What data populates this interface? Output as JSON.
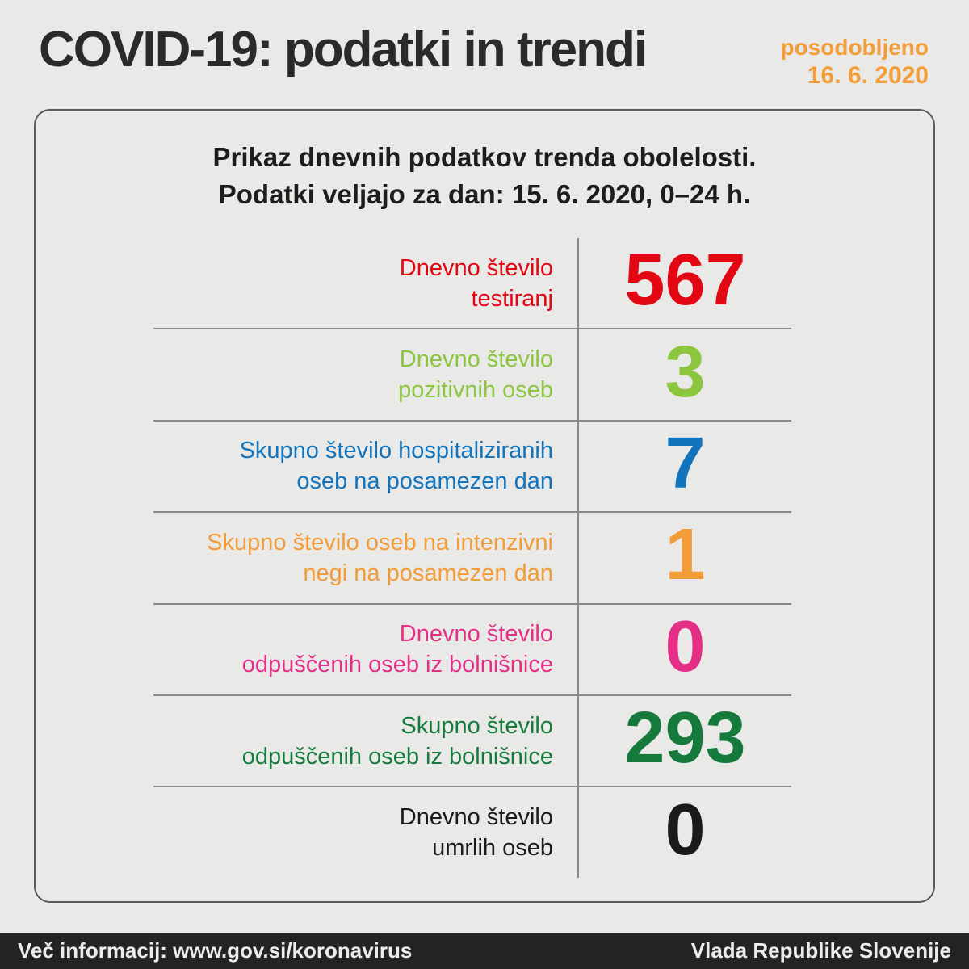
{
  "page": {
    "title": "COVID-19: podatki in trendi",
    "updated_label": "posodobljeno",
    "updated_date": "16. 6. 2020"
  },
  "card": {
    "header_line1": "Prikaz dnevnih podatkov trenda obolelosti.",
    "header_line2": "Podatki veljajo za dan: 15. 6. 2020, 0–24 h.",
    "rows": [
      {
        "label_line1": "Dnevno število",
        "label_line2": "testiranj",
        "value": "567",
        "color": "#e30613"
      },
      {
        "label_line1": "Dnevno število",
        "label_line2": "pozitivnih oseb",
        "value": "3",
        "color": "#8cc63f"
      },
      {
        "label_line1": "Skupno število hospitaliziranih",
        "label_line2": "oseb na posamezen dan",
        "value": "7",
        "color": "#1274bc"
      },
      {
        "label_line1": "Skupno število oseb na intenzivni",
        "label_line2": "negi na posamezen dan",
        "value": "1",
        "color": "#f29c38"
      },
      {
        "label_line1": "Dnevno število",
        "label_line2": "odpuščenih oseb iz bolnišnice",
        "value": "0",
        "color": "#e52e86"
      },
      {
        "label_line1": "Skupno število",
        "label_line2": "odpuščenih oseb iz bolnišnice",
        "value": "293",
        "color": "#157a3b"
      },
      {
        "label_line1": "Dnevno število",
        "label_line2": "umrlih oseb",
        "value": "0",
        "color": "#1a1a1a"
      }
    ]
  },
  "footer": {
    "left": "Več informacij: www.gov.si/koronavirus",
    "right": "Vlada Republike Slovenije"
  },
  "colors": {
    "background": "#e9e9e7",
    "title_text": "#2b2a28",
    "updated_accent": "#f29d38",
    "header_text": "#1d1d1b",
    "card_border": "#5a5a5c",
    "divider": "#8a8a8a",
    "footer_background": "#232321",
    "footer_text": "#edecea"
  },
  "chart_data": {
    "type": "table",
    "title": "Prikaz dnevnih podatkov trenda obolelosti.",
    "subtitle": "Podatki veljajo za dan: 15. 6. 2020, 0–24 h.",
    "categories": [
      "Dnevno število testiranj",
      "Dnevno število pozitivnih oseb",
      "Skupno število hospitaliziranih oseb na posamezen dan",
      "Skupno število oseb na intenzivni negi na posamezen dan",
      "Dnevno število odpuščenih oseb iz bolnišnice",
      "Skupno število odpuščenih oseb iz bolnišnice",
      "Dnevno število umrlih oseb"
    ],
    "values": [
      567,
      3,
      7,
      1,
      0,
      293,
      0
    ]
  }
}
